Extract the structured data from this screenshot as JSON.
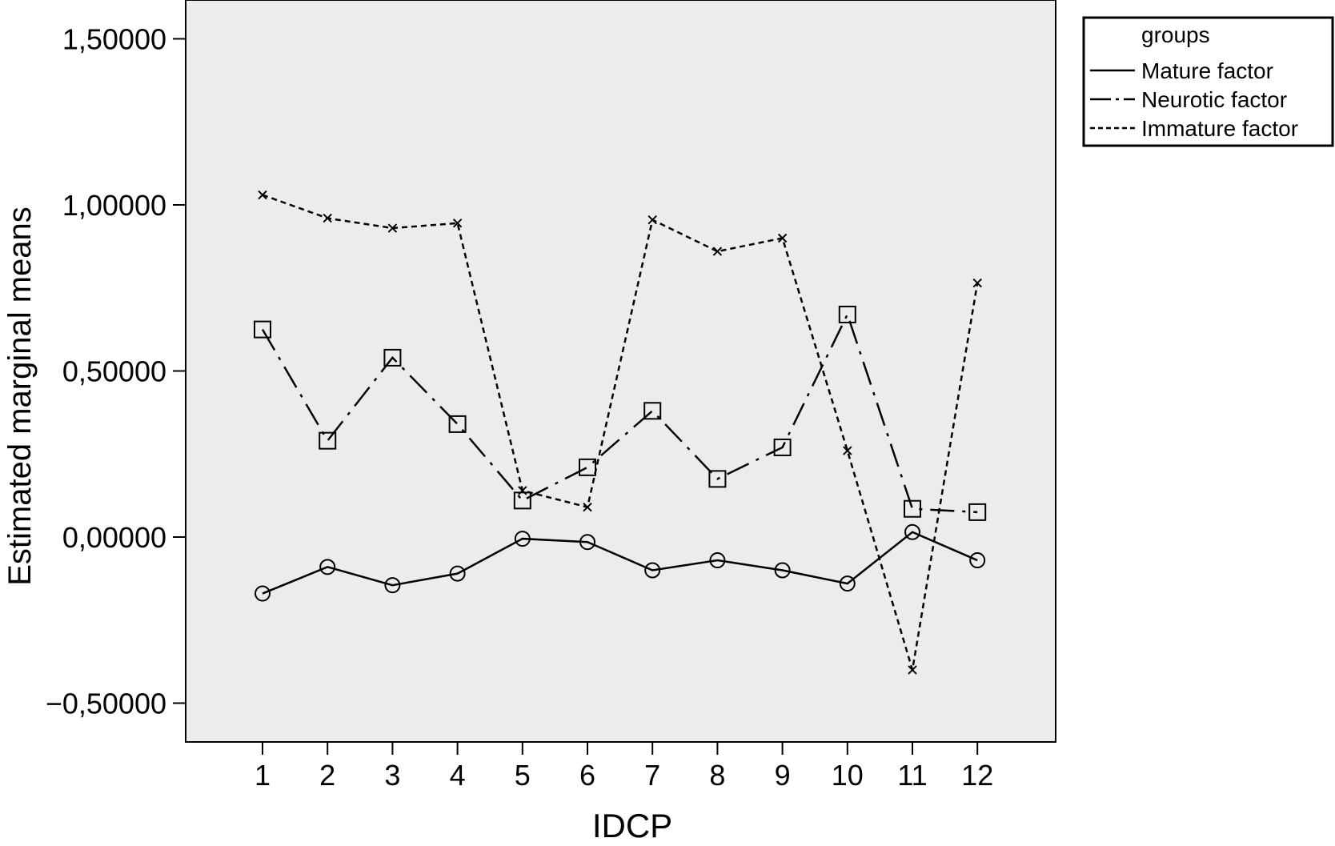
{
  "chart_data": {
    "type": "line",
    "title": "",
    "xlabel": "IDCP",
    "ylabel": "Estimated marginal means",
    "categories": [
      "1",
      "2",
      "3",
      "4",
      "5",
      "6",
      "7",
      "8",
      "9",
      "10",
      "11",
      "12"
    ],
    "ylim": [
      -0.6,
      1.6
    ],
    "yticks": [
      -0.5,
      0.0,
      0.5,
      1.0,
      1.5
    ],
    "ytick_labels": [
      "−0,50000",
      "0,00000",
      "0,50000",
      "1,00000",
      "1,50000"
    ],
    "grid": false,
    "plot_background": "#ececec",
    "legend": {
      "title": "groups",
      "position": "outside-top-right"
    },
    "series": [
      {
        "name": "Mature factor",
        "line_style": "solid",
        "marker": "circle",
        "color": "#000000",
        "values": [
          -0.17,
          -0.09,
          -0.145,
          -0.11,
          -0.005,
          -0.015,
          -0.1,
          -0.07,
          -0.1,
          -0.14,
          0.015,
          -0.07
        ]
      },
      {
        "name": "Neurotic factor",
        "line_style": "dash-dot",
        "marker": "square",
        "color": "#000000",
        "values": [
          0.625,
          0.29,
          0.54,
          0.34,
          0.11,
          0.21,
          0.38,
          0.175,
          0.27,
          0.67,
          0.085,
          0.075
        ]
      },
      {
        "name": "Immature factor",
        "line_style": "dotted",
        "marker": "x",
        "color": "#000000",
        "values": [
          1.03,
          0.96,
          0.93,
          0.945,
          0.14,
          0.09,
          0.955,
          0.86,
          0.9,
          0.26,
          -0.4,
          0.765
        ]
      }
    ]
  }
}
